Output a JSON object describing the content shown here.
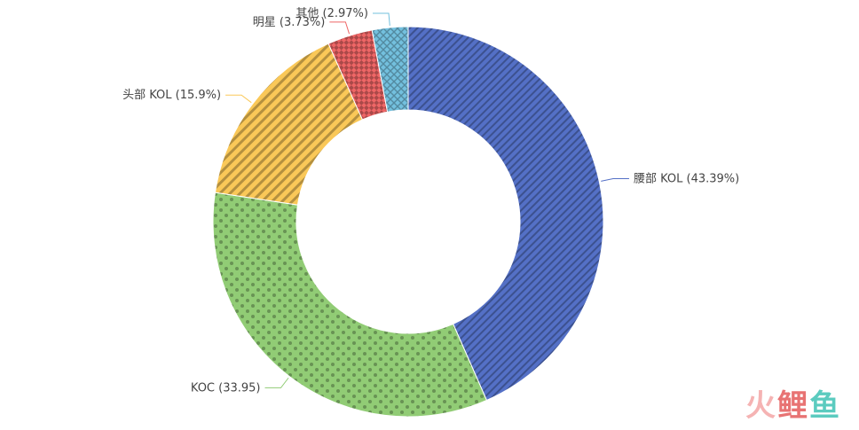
{
  "chart_data": {
    "type": "pie",
    "subtype": "donut",
    "title": "",
    "legend": "none",
    "slices": [
      {
        "label": "腰部 KOL (43.39%)",
        "value": 43.39,
        "color": "#5470c6",
        "pattern": "diagonal-dense"
      },
      {
        "label": "KOC (33.95)",
        "value": 33.95,
        "color": "#91cc75",
        "pattern": "dots"
      },
      {
        "label": "头部 KOL (15.9%)",
        "value": 15.9,
        "color": "#fac858",
        "pattern": "diagonal-wide"
      },
      {
        "label": "明星 (3.73%)",
        "value": 3.73,
        "color": "#ee6666",
        "pattern": "checker"
      },
      {
        "label": "其他 (2.97%)",
        "value": 2.97,
        "color": "#73c0de",
        "pattern": "crosshatch"
      }
    ]
  },
  "watermark": {
    "text_a": "火",
    "text_b": "鲤",
    "text_c": "鱼"
  }
}
